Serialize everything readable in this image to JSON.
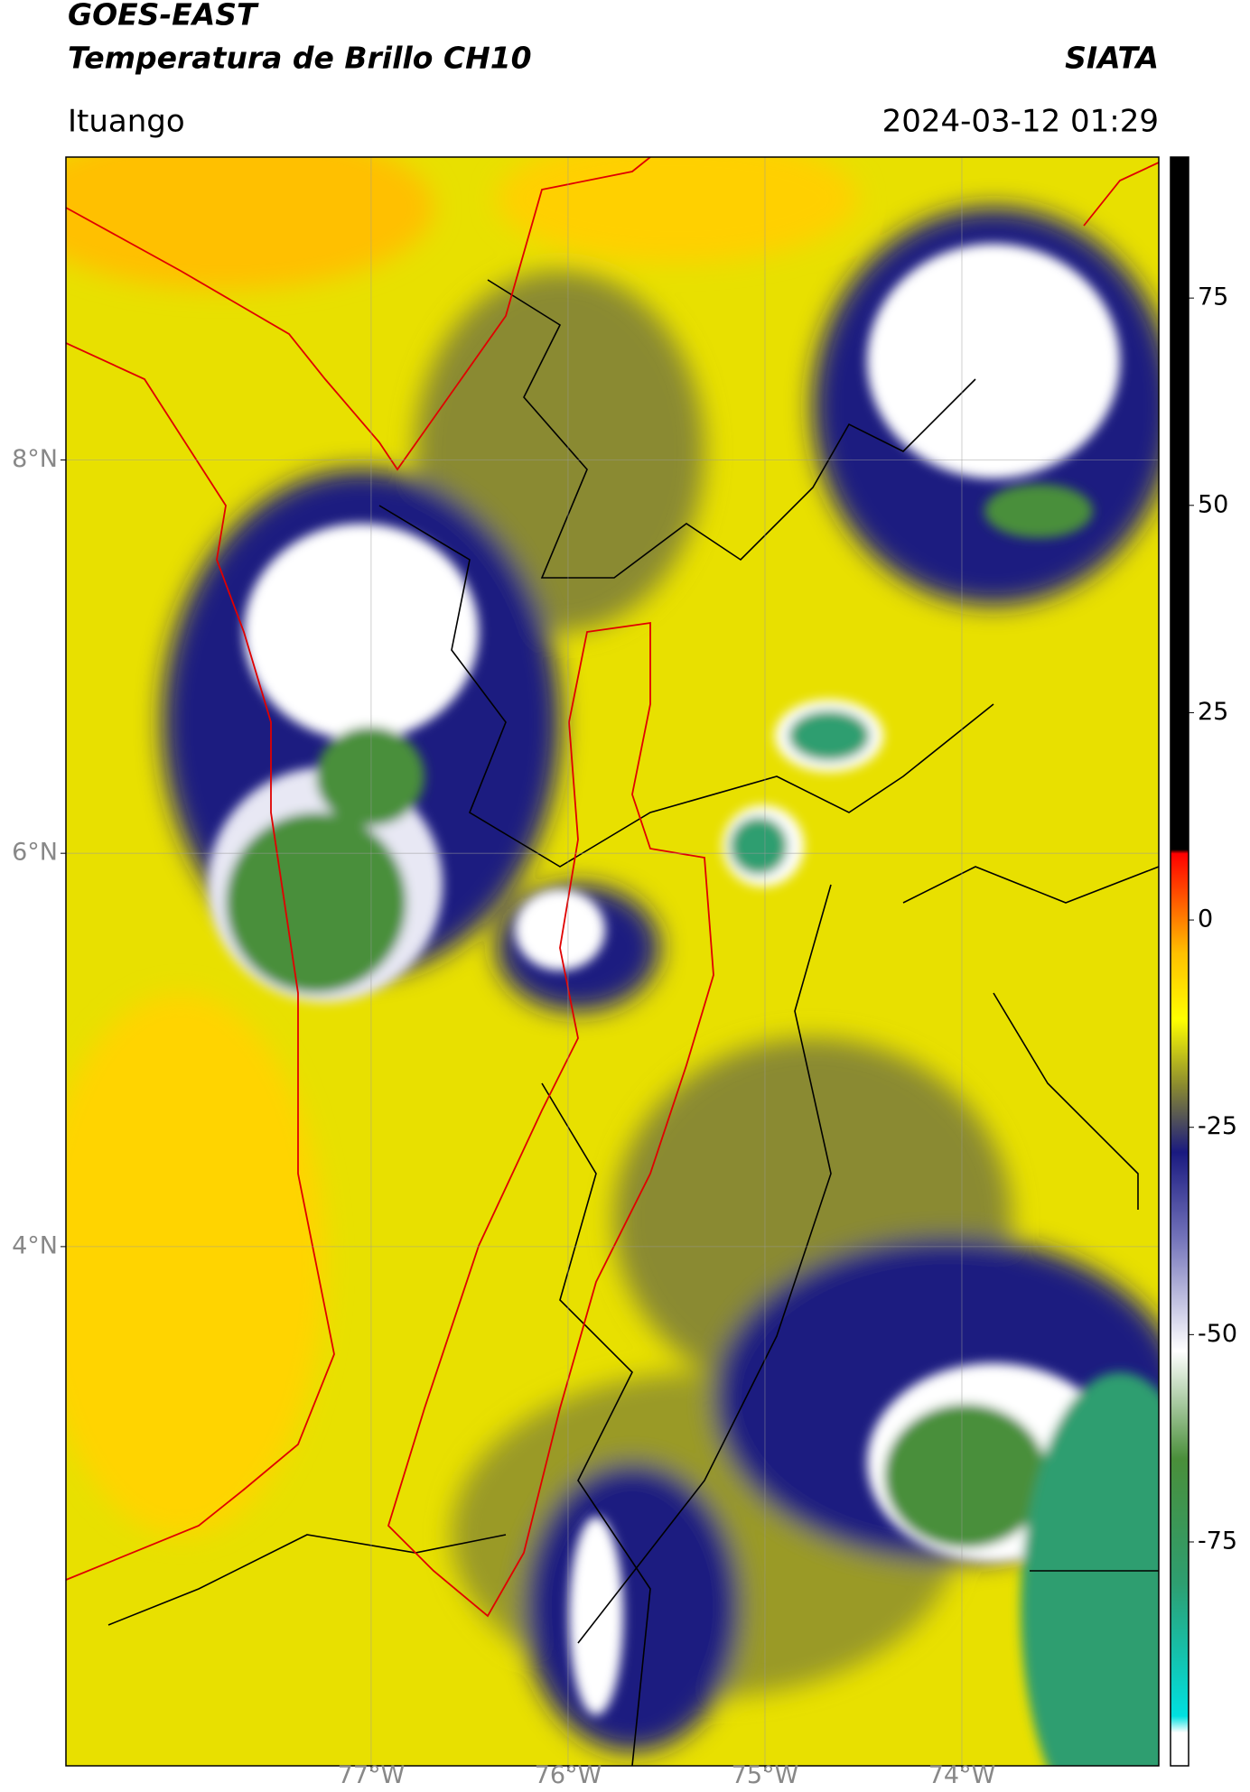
{
  "header": {
    "title": "GOES-EAST",
    "subtitle": "Temperatura de Brillo CH10",
    "brand": "SIATA",
    "location": "Ituango",
    "timestamp": "2024-03-12 01:29"
  },
  "map": {
    "lon_range": [
      -78.55,
      -73.0
    ],
    "lat_range": [
      1.36,
      9.54
    ],
    "grid": true,
    "lon_ticks": [
      {
        "value": -77,
        "label": "77°W"
      },
      {
        "value": -76,
        "label": "76°W"
      },
      {
        "value": -75,
        "label": "75°W"
      },
      {
        "value": -74,
        "label": "74°W"
      }
    ],
    "lat_ticks": [
      {
        "value": 8,
        "label": "8°N"
      },
      {
        "value": 6,
        "label": "6°N"
      },
      {
        "value": 4,
        "label": "4°N"
      }
    ]
  },
  "colorbar": {
    "range": [
      -102,
      92
    ],
    "ticks": [
      -75,
      -50,
      -25,
      0,
      25,
      50,
      75
    ],
    "stops": [
      {
        "value": -102,
        "color": "#ffffff"
      },
      {
        "value": -98,
        "color": "#ffffff"
      },
      {
        "value": -96,
        "color": "#00e0e0"
      },
      {
        "value": -80,
        "color": "#2e9e70"
      },
      {
        "value": -65,
        "color": "#4a8f3a"
      },
      {
        "value": -52,
        "color": "#ffffff"
      },
      {
        "value": -38,
        "color": "#7070b8"
      },
      {
        "value": -28,
        "color": "#1a1a80"
      },
      {
        "value": -20,
        "color": "#8a8a30"
      },
      {
        "value": -12,
        "color": "#ffff00"
      },
      {
        "value": -4,
        "color": "#ffc000"
      },
      {
        "value": 0,
        "color": "#ff8000"
      },
      {
        "value": 8,
        "color": "#ff0000"
      },
      {
        "value": 8.5,
        "color": "#000000"
      },
      {
        "value": 92,
        "color": "#000000"
      }
    ]
  }
}
